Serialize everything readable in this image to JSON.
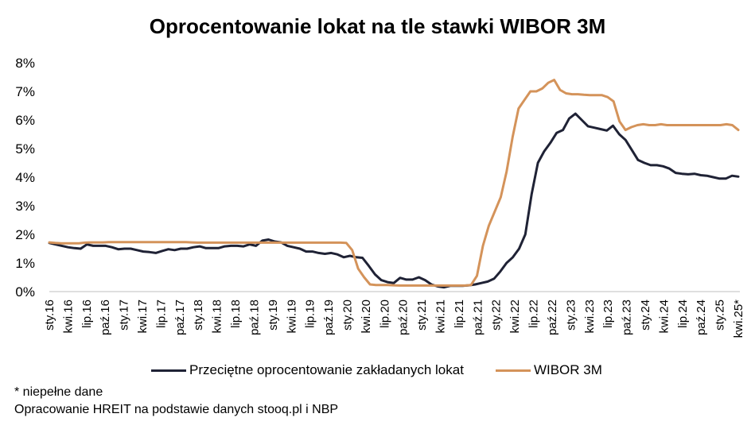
{
  "chart_data": {
    "type": "line",
    "title": "Oprocentowanie lokat na tle stawki WIBOR 3M",
    "xlabel": "",
    "ylabel": "",
    "ylim": [
      0,
      8
    ],
    "yticks": [
      "0%",
      "1%",
      "2%",
      "3%",
      "4%",
      "5%",
      "6%",
      "7%",
      "8%"
    ],
    "grid": false,
    "legend_position": "bottom",
    "x_tick_labels": [
      "sty.16",
      "kwi.16",
      "lip.16",
      "paź.16",
      "sty.17",
      "kwi.17",
      "lip.17",
      "paź.17",
      "sty.18",
      "kwi.18",
      "lip.18",
      "paź.18",
      "sty.19",
      "kwi.19",
      "lip.19",
      "paź.19",
      "sty.20",
      "kwi.20",
      "lip.20",
      "paź.20",
      "sty.21",
      "kwi.21",
      "lip.21",
      "paź.21",
      "sty.22",
      "kwi.22",
      "lip.22",
      "paź.22",
      "sty.23",
      "kwi.23",
      "lip.23",
      "paź.23",
      "sty.24",
      "kwi.24",
      "lip.24",
      "paź.24",
      "sty.25",
      "kwi.25*"
    ],
    "series": [
      {
        "name": "Przeciętne oprocentowanie zakładanych lokat",
        "color": "#1f2235",
        "values": [
          1.7,
          1.65,
          1.6,
          1.55,
          1.52,
          1.5,
          1.65,
          1.6,
          1.6,
          1.6,
          1.55,
          1.48,
          1.5,
          1.5,
          1.45,
          1.4,
          1.38,
          1.35,
          1.42,
          1.48,
          1.45,
          1.5,
          1.5,
          1.55,
          1.58,
          1.52,
          1.52,
          1.52,
          1.58,
          1.6,
          1.6,
          1.58,
          1.65,
          1.6,
          1.78,
          1.82,
          1.75,
          1.72,
          1.6,
          1.55,
          1.5,
          1.4,
          1.4,
          1.35,
          1.32,
          1.35,
          1.3,
          1.2,
          1.25,
          1.2,
          1.18,
          0.9,
          0.6,
          0.4,
          0.33,
          0.3,
          0.48,
          0.42,
          0.42,
          0.5,
          0.4,
          0.25,
          0.18,
          0.15,
          0.2,
          0.2,
          0.2,
          0.22,
          0.25,
          0.3,
          0.35,
          0.45,
          0.7,
          1.0,
          1.2,
          1.5,
          2.0,
          3.4,
          4.5,
          4.9,
          5.2,
          5.55,
          5.65,
          6.05,
          6.22,
          6.0,
          5.78,
          5.73,
          5.68,
          5.63,
          5.8,
          5.5,
          5.3,
          4.95,
          4.6,
          4.5,
          4.42,
          4.42,
          4.38,
          4.3,
          4.15,
          4.12,
          4.1,
          4.12,
          4.07,
          4.05,
          4.0,
          3.95,
          3.95,
          4.05,
          4.02
        ]
      },
      {
        "name": "WIBOR 3M",
        "color": "#d4935a",
        "values": [
          1.72,
          1.7,
          1.69,
          1.69,
          1.69,
          1.69,
          1.71,
          1.72,
          1.72,
          1.72,
          1.73,
          1.73,
          1.73,
          1.73,
          1.73,
          1.73,
          1.73,
          1.73,
          1.73,
          1.73,
          1.73,
          1.73,
          1.73,
          1.73,
          1.72,
          1.71,
          1.71,
          1.71,
          1.71,
          1.71,
          1.71,
          1.71,
          1.71,
          1.71,
          1.71,
          1.71,
          1.71,
          1.71,
          1.71,
          1.71,
          1.71,
          1.71,
          1.71,
          1.71,
          1.71,
          1.71,
          1.71,
          1.71,
          1.71,
          1.71,
          1.7,
          1.45,
          0.8,
          0.5,
          0.25,
          0.23,
          0.23,
          0.23,
          0.22,
          0.21,
          0.21,
          0.21,
          0.21,
          0.21,
          0.21,
          0.21,
          0.21,
          0.21,
          0.21,
          0.21,
          0.21,
          0.23,
          0.55,
          1.6,
          2.3,
          2.8,
          3.3,
          4.2,
          5.4,
          6.4,
          6.7,
          7.0,
          7.0,
          7.1,
          7.3,
          7.4,
          7.05,
          6.93,
          6.9,
          6.9,
          6.88,
          6.87,
          6.87,
          6.87,
          6.8,
          6.65,
          5.95,
          5.65,
          5.75,
          5.82,
          5.85,
          5.82,
          5.82,
          5.85,
          5.82,
          5.82,
          5.82,
          5.82,
          5.82,
          5.82,
          5.82,
          5.82,
          5.82,
          5.82,
          5.85,
          5.82,
          5.65
        ]
      }
    ]
  },
  "notes": {
    "footnote": "* niepełne dane",
    "source": "Opracowanie HREIT na podstawie danych stooq.pl i NBP"
  }
}
